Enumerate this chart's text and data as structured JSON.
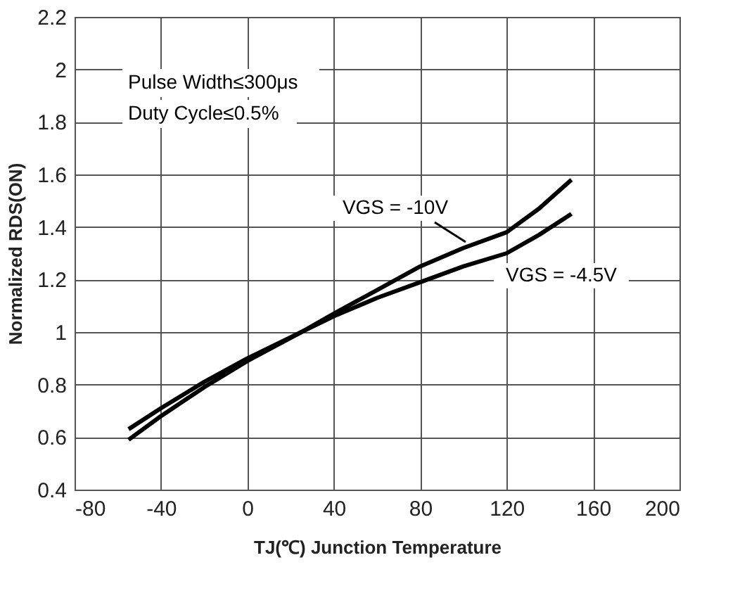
{
  "chart_data": {
    "type": "line",
    "xlabel": "TJ(℃) Junction Temperature",
    "ylabel": "Normalized RDS(ON)",
    "x": [
      -55,
      -40,
      -20,
      0,
      25,
      40,
      60,
      80,
      100,
      120,
      135,
      150
    ],
    "series": [
      {
        "name": "VGS = -10V",
        "color": "#000000",
        "values": [
          0.59,
          0.68,
          0.79,
          0.89,
          1.0,
          1.07,
          1.16,
          1.25,
          1.32,
          1.38,
          1.47,
          1.58
        ]
      },
      {
        "name": "VGS = -4.5V",
        "color": "#000000",
        "values": [
          0.63,
          0.71,
          0.81,
          0.9,
          1.0,
          1.06,
          1.13,
          1.19,
          1.25,
          1.3,
          1.37,
          1.45
        ]
      }
    ],
    "xlim": [
      -80,
      200
    ],
    "xticks": [
      -80,
      -40,
      0,
      40,
      80,
      120,
      160,
      200
    ],
    "ylim": [
      0.4,
      2.2
    ],
    "yticks": [
      0.4,
      0.6,
      0.8,
      1,
      1.2,
      1.4,
      1.6,
      1.8,
      2,
      2.2
    ],
    "annotations": [
      "Pulse Width≤300μs",
      "Duty Cycle≤0.5%"
    ],
    "grid": true,
    "legend": false,
    "marker": "none",
    "line_style": "solid"
  }
}
